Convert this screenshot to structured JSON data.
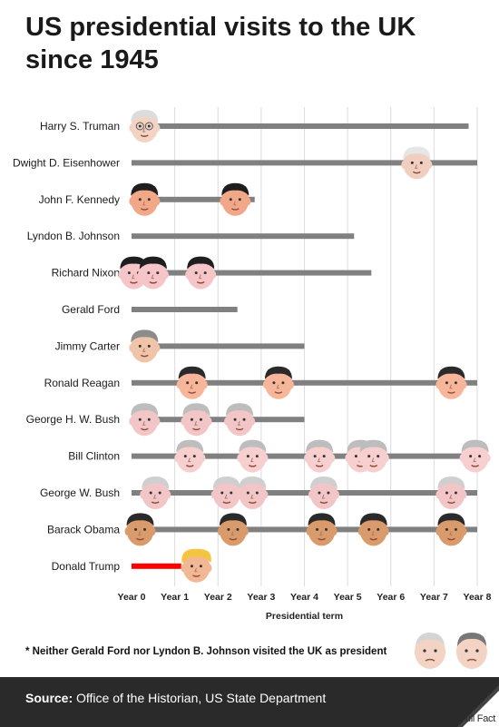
{
  "title_lines": [
    "US presidential visits to the UK",
    "since 1945"
  ],
  "footnote": "* Neither Gerald Ford nor Lyndon B. Johnson visited the UK as president",
  "footer": {
    "source_label": "Source:",
    "source_text": "Office of the Historian, US State Department",
    "logo_text": "Full Fact"
  },
  "colors": {
    "bar": "#808080",
    "highlight": "#ff0000",
    "grid": "#dcdcdc",
    "footer_bg": "#2a2a2a"
  },
  "chart_data": {
    "type": "timeline",
    "xlabel": "Presidential term",
    "ylabel": "",
    "xlim": [
      0,
      8
    ],
    "x_ticks": [
      {
        "value": 0,
        "label": "Year 0"
      },
      {
        "value": 1,
        "label": "Year 1"
      },
      {
        "value": 2,
        "label": "Year 2"
      },
      {
        "value": 3,
        "label": "Year 3"
      },
      {
        "value": 4,
        "label": "Year 4"
      },
      {
        "value": 5,
        "label": "Year 5"
      },
      {
        "value": 6,
        "label": "Year 6"
      },
      {
        "value": 7,
        "label": "Year 7"
      },
      {
        "value": 8,
        "label": "Year 8"
      }
    ],
    "grid": true,
    "series": [
      {
        "name": "Harry S. Truman",
        "term_length": 7.8,
        "visits": [
          0.3
        ],
        "skin": "#f2d3c4",
        "hair": "#dcdcdc",
        "glasses": true
      },
      {
        "name": "Dwight D. Eisenhower",
        "term_length": 8.0,
        "visits": [
          6.6
        ],
        "skin": "#f0cfc0",
        "hair": "#e6e6e6"
      },
      {
        "name": "John F. Kennedy",
        "term_length": 2.85,
        "visits": [
          0.3,
          2.4
        ],
        "skin": "#f2a888",
        "hair": "#1e1e1e"
      },
      {
        "name": "Lyndon B. Johnson",
        "term_length": 5.15,
        "visits": [],
        "skin": "#f2d3c4",
        "hair": "#cccccc"
      },
      {
        "name": "Richard Nixon",
        "term_length": 5.55,
        "visits": [
          0.05,
          0.5,
          1.6
        ],
        "skin": "#f5c5c8",
        "hair": "#1e1e1e"
      },
      {
        "name": "Gerald Ford",
        "term_length": 2.45,
        "visits": [],
        "skin": "#f2d3c4",
        "hair": "#aaaaaa"
      },
      {
        "name": "Jimmy Carter",
        "term_length": 4.0,
        "visits": [
          0.3
        ],
        "skin": "#f0c4a8",
        "hair": "#8c8c8c"
      },
      {
        "name": "Ronald Reagan",
        "term_length": 8.0,
        "visits": [
          1.4,
          3.4,
          7.4
        ],
        "skin": "#f7b59a",
        "hair": "#2a2a2a"
      },
      {
        "name": "George H. W. Bush",
        "term_length": 4.0,
        "visits": [
          0.3,
          1.5,
          2.5
        ],
        "skin": "#f2c6c6",
        "hair": "#bdbdbd"
      },
      {
        "name": "Bill Clinton",
        "term_length": 8.0,
        "visits": [
          1.35,
          2.8,
          4.35,
          5.3,
          5.6,
          7.95
        ],
        "skin": "#f7cfcf",
        "hair": "#bdbdbd"
      },
      {
        "name": "George W. Bush",
        "term_length": 8.0,
        "visits": [
          0.55,
          2.2,
          2.8,
          4.45,
          7.4
        ],
        "skin": "#f2c6c6",
        "hair": "#cfcfcf"
      },
      {
        "name": "Barack Obama",
        "term_length": 8.0,
        "visits": [
          0.2,
          2.35,
          4.4,
          5.6,
          7.4
        ],
        "skin": "#d99a6c",
        "hair": "#2a2a2a"
      },
      {
        "name": "Donald Trump",
        "term_length": 1.15,
        "visits": [
          1.5
        ],
        "skin": "#f2b896",
        "hair": "#f5c542",
        "highlight": true
      }
    ]
  }
}
